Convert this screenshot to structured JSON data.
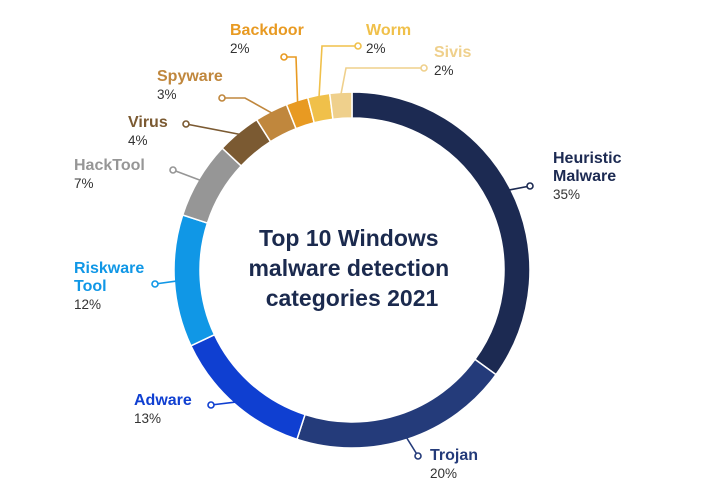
{
  "chart_data": {
    "type": "pie",
    "title": [
      "Top 10 Windows",
      "malware detection",
      "categories 2021"
    ],
    "unit": "%",
    "categories": [
      "Heuristic Malware",
      "Trojan",
      "Adware",
      "Riskware Tool",
      "HackTool",
      "Virus",
      "Spyware",
      "Backdoor",
      "Worm",
      "Sivis"
    ],
    "series": [
      {
        "values": [
          35,
          20,
          13,
          12,
          7,
          4,
          3,
          2,
          2,
          2
        ]
      }
    ],
    "slices": [
      {
        "name": "Heuristic Malware",
        "label_lines": [
          "Heuristic",
          "Malware"
        ],
        "value": 35,
        "pct_label": "35%",
        "color": "#1c2a52"
      },
      {
        "name": "Trojan",
        "label_lines": [
          "Trojan"
        ],
        "value": 20,
        "pct_label": "20%",
        "color": "#243b7a"
      },
      {
        "name": "Adware",
        "label_lines": [
          "Adware"
        ],
        "value": 13,
        "pct_label": "13%",
        "color": "#0f3fd1"
      },
      {
        "name": "Riskware Tool",
        "label_lines": [
          "Riskware",
          "Tool"
        ],
        "value": 12,
        "pct_label": "12%",
        "color": "#1097e6"
      },
      {
        "name": "HackTool",
        "label_lines": [
          "HackTool"
        ],
        "value": 7,
        "pct_label": "7%",
        "color": "#969696"
      },
      {
        "name": "Virus",
        "label_lines": [
          "Virus"
        ],
        "value": 4,
        "pct_label": "4%",
        "color": "#7b5a32"
      },
      {
        "name": "Spyware",
        "label_lines": [
          "Spyware"
        ],
        "value": 3,
        "pct_label": "3%",
        "color": "#c0873d"
      },
      {
        "name": "Backdoor",
        "label_lines": [
          "Backdoor"
        ],
        "value": 2,
        "pct_label": "2%",
        "color": "#e89a22"
      },
      {
        "name": "Worm",
        "label_lines": [
          "Worm"
        ],
        "value": 2,
        "pct_label": "2%",
        "color": "#f0c04a"
      },
      {
        "name": "Sivis",
        "label_lines": [
          "Sivis"
        ],
        "value": 2,
        "pct_label": "2%",
        "color": "#efd08c"
      }
    ],
    "legend": "none",
    "grid": false
  }
}
